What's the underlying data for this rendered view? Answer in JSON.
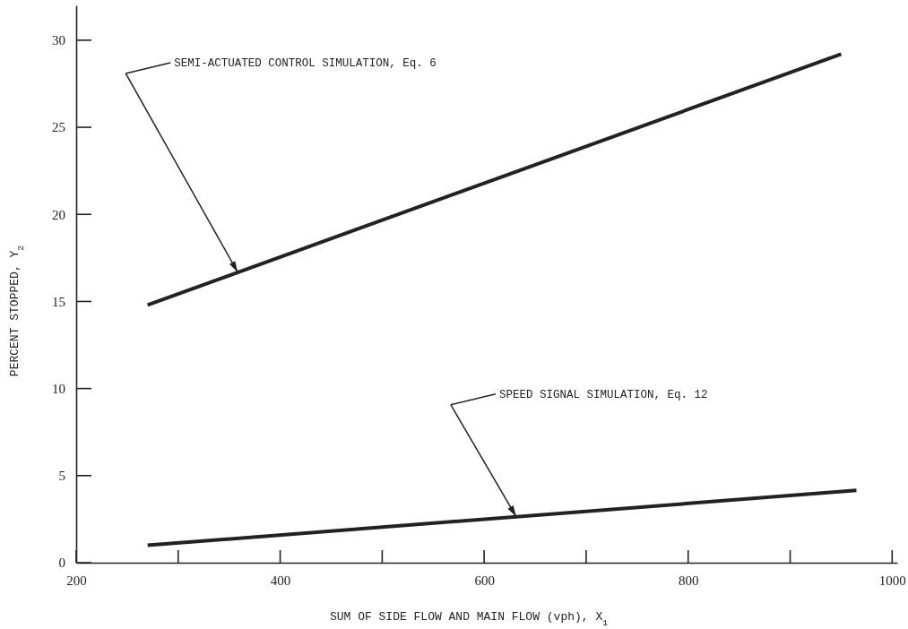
{
  "chart_data": {
    "type": "line",
    "xlabel": "SUM OF SIDE FLOW AND MAIN FLOW (vph), X$_{1}$",
    "ylabel": "PERCENT STOPPED, Y$_{2}$",
    "series": [
      {
        "color": "#222222",
        "x": [
          270,
          950
        ],
        "values": [
          14.8,
          29.2
        ]
      },
      {
        "color": "#222222",
        "x": [
          270,
          965
        ],
        "values": [
          1.0,
          4.15
        ]
      }
    ],
    "xlim": [
      200,
      1005
    ],
    "ylim": [
      0,
      32
    ],
    "xticks": [
      200,
      {
        "value": 300,
        "label": null
      },
      400,
      {
        "value": 500,
        "label": null
      },
      600,
      {
        "value": 700,
        "label": null
      },
      800,
      {
        "value": 900,
        "label": null
      },
      1000
    ],
    "yticks": [
      0,
      5,
      10,
      15,
      20,
      25,
      30
    ],
    "annotations": [
      "SEMI-ACTUATED CONTROL SIMULATION, Eq. 6",
      "SPEED SIGNAL SIMULATION, Eq. 12"
    ],
    "grid": false,
    "marker": "none",
    "line_style": "solid"
  }
}
